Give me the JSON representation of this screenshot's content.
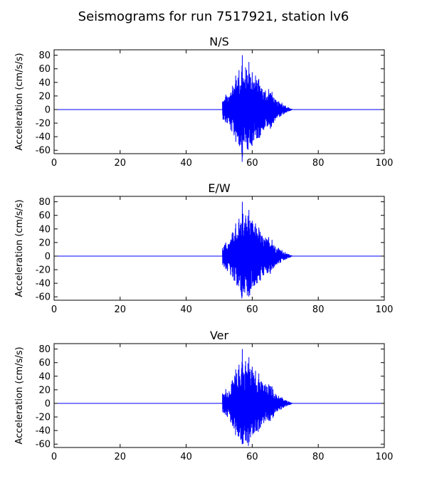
{
  "figure": {
    "title": "Seismograms for run 7517921, station lv6"
  },
  "colors": {
    "trace": "#0000ff",
    "axes": "#000000",
    "background": "#ffffff"
  },
  "chart_data": [
    {
      "type": "line",
      "title": "N/S",
      "xlabel": "",
      "ylabel": "Acceleration (cm/s/s)",
      "xlim": [
        0,
        100
      ],
      "ylim": [
        -65,
        88
      ],
      "xticks": [
        0,
        20,
        40,
        60,
        80,
        100
      ],
      "yticks": [
        -60,
        -40,
        -20,
        0,
        20,
        40,
        60,
        80
      ],
      "grid": false,
      "series": [
        {
          "x": [
            0,
            51,
            51.5,
            52,
            52.5,
            53,
            53.5,
            54,
            54.5,
            55,
            55.5,
            56,
            56.5,
            57,
            57.5,
            58,
            58.5,
            59,
            59.5,
            60,
            60.5,
            61,
            61.5,
            62,
            62.5,
            63,
            63.5,
            64,
            64.5,
            65,
            65.5,
            66,
            66.5,
            67,
            67.5,
            68,
            68.5,
            69,
            69.5,
            70,
            70.5,
            71,
            71.5,
            72,
            100
          ],
          "y": [
            0,
            15,
            -15,
            22,
            -20,
            18,
            -30,
            35,
            -38,
            50,
            -40,
            58,
            -52,
            80,
            -47,
            62,
            -58,
            70,
            -50,
            55,
            -45,
            50,
            -42,
            45,
            -38,
            30,
            -30,
            28,
            -25,
            30,
            -28,
            26,
            -20,
            15,
            -12,
            12,
            -10,
            10,
            -7,
            6,
            -4,
            3,
            -2,
            1,
            0
          ]
        }
      ]
    },
    {
      "type": "line",
      "title": "E/W",
      "xlabel": "",
      "ylabel": "Acceleration (cm/s/s)",
      "xlim": [
        0,
        100
      ],
      "ylim": [
        -65,
        88
      ],
      "xticks": [
        0,
        20,
        40,
        60,
        80,
        100
      ],
      "yticks": [
        -60,
        -40,
        -20,
        0,
        20,
        40,
        60,
        80
      ],
      "grid": false,
      "series": [
        {
          "x": [
            0,
            51,
            51.5,
            52,
            52.5,
            53,
            53.5,
            54,
            54.5,
            55,
            55.5,
            56,
            56.5,
            57,
            57.5,
            58,
            58.5,
            59,
            59.5,
            60,
            60.5,
            61,
            61.5,
            62,
            62.5,
            63,
            63.5,
            64,
            64.5,
            65,
            65.5,
            66,
            66.5,
            67,
            67.5,
            68,
            68.5,
            69,
            69.5,
            70,
            70.5,
            71,
            71.5,
            72,
            100
          ],
          "y": [
            0,
            14,
            -16,
            20,
            -22,
            17,
            -28,
            35,
            -36,
            48,
            -42,
            55,
            -50,
            80,
            -48,
            60,
            -58,
            68,
            -48,
            52,
            -44,
            48,
            -40,
            42,
            -36,
            30,
            -28,
            27,
            -25,
            28,
            -26,
            24,
            -18,
            14,
            -12,
            12,
            -10,
            9,
            -6,
            6,
            -4,
            3,
            -2,
            1,
            0
          ]
        }
      ]
    },
    {
      "type": "line",
      "title": "Ver",
      "xlabel": "",
      "ylabel": "Acceleration (cm/s/s)",
      "xlim": [
        0,
        100
      ],
      "ylim": [
        -65,
        88
      ],
      "xticks": [
        0,
        20,
        40,
        60,
        80,
        100
      ],
      "yticks": [
        -60,
        -40,
        -20,
        0,
        20,
        40,
        60,
        80
      ],
      "grid": false,
      "series": [
        {
          "x": [
            0,
            51,
            51.5,
            52,
            52.5,
            53,
            53.5,
            54,
            54.5,
            55,
            55.5,
            56,
            56.5,
            57,
            57.5,
            58,
            58.5,
            59,
            59.5,
            60,
            60.5,
            61,
            61.5,
            62,
            62.5,
            63,
            63.5,
            64,
            64.5,
            65,
            65.5,
            66,
            66.5,
            67,
            67.5,
            68,
            68.5,
            69,
            69.5,
            70,
            70.5,
            71,
            71.5,
            72,
            100
          ],
          "y": [
            0,
            15,
            -14,
            21,
            -20,
            18,
            -28,
            34,
            -37,
            50,
            -42,
            57,
            -52,
            80,
            -46,
            62,
            -58,
            68,
            -50,
            54,
            -44,
            48,
            -40,
            44,
            -36,
            30,
            -29,
            28,
            -24,
            28,
            -26,
            25,
            -19,
            14,
            -12,
            11,
            -9,
            9,
            -6,
            5,
            -4,
            3,
            -2,
            1,
            0
          ]
        }
      ]
    }
  ]
}
